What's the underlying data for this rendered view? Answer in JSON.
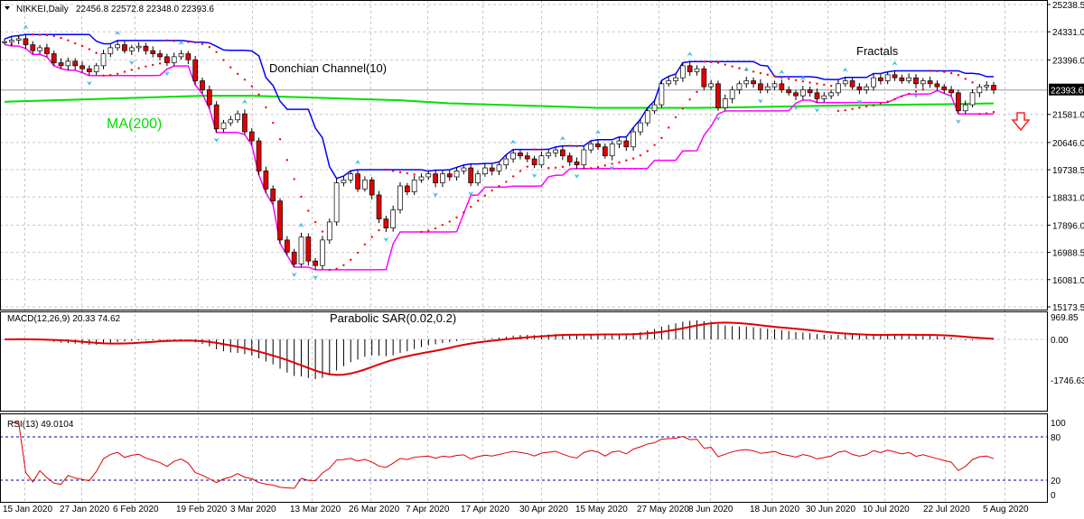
{
  "header": {
    "symbol": "NIKKEI,Daily",
    "ohlc": "22456.8 22572.8 22348.0 22393.6"
  },
  "annotations": {
    "donchian": "Donchian Channel(10)",
    "ma": "MA(200)",
    "sar": "Parabolic SAR(0.02,0.2)",
    "fractals": "Fractals",
    "signal_icon": "down-arrow-icon"
  },
  "colors": {
    "bull": "#ffffff",
    "bear": "#e00000",
    "ma": "#00e000",
    "donchian_upper": "#0000ff",
    "donchian_lower": "#ff00ff",
    "sar": "#ff0000",
    "fractal": "#40c0e0",
    "macd_signal": "#e00000"
  },
  "chart_data": [
    {
      "type": "candlestick",
      "title": "NIKKEI,Daily",
      "current_price": "22393.6",
      "yticks": [
        "25238.5",
        "24331.0",
        "23396.0",
        "21581.0",
        "20646.0",
        "19738.5",
        "18831.0",
        "17896.0",
        "16988.5",
        "16081.0",
        "15173.5"
      ],
      "ylim": [
        15173.5,
        25238.5
      ],
      "xticks": [
        "15 Jan 2020",
        "27 Jan 2020",
        "6 Feb 2020",
        "19 Feb 2020",
        "3 Mar 2020",
        "13 Mar 2020",
        "26 Mar 2020",
        "7 Apr 2020",
        "17 Apr 2020",
        "30 Apr 2020",
        "15 May 2020",
        "27 May 2020",
        "8 Jun 2020",
        "18 Jun 2020",
        "30 Jun 2020",
        "10 Jul 2020",
        "22 Jul 2020",
        "5 Aug 2020"
      ],
      "closes": [
        24000,
        24050,
        24100,
        23900,
        23700,
        23800,
        23600,
        23300,
        23200,
        23350,
        23200,
        23100,
        23000,
        23200,
        23600,
        23800,
        23900,
        23700,
        23800,
        23850,
        23700,
        23600,
        23500,
        23300,
        23500,
        23600,
        23400,
        22700,
        22400,
        21900,
        21100,
        21300,
        21400,
        21600,
        21000,
        20700,
        19700,
        19100,
        18700,
        17400,
        17000,
        16600,
        17500,
        16700,
        16550,
        17400,
        18000,
        19300,
        19400,
        19600,
        19100,
        19400,
        18900,
        18100,
        17800,
        18400,
        19200,
        19000,
        19400,
        19500,
        19600,
        19300,
        19600,
        19500,
        19700,
        19800,
        19300,
        19600,
        19800,
        19700,
        19900,
        20100,
        20300,
        20200,
        20100,
        19900,
        20200,
        20300,
        20400,
        20200,
        20000,
        19900,
        20400,
        20600,
        20500,
        20200,
        20600,
        20700,
        20500,
        21000,
        21300,
        21700,
        21900,
        22600,
        22700,
        22800,
        23200,
        23000,
        23100,
        22500,
        22600,
        21800,
        22100,
        22400,
        22600,
        22700,
        22600,
        22400,
        22500,
        22600,
        22400,
        22300,
        22200,
        22400,
        22300,
        22100,
        22200,
        22300,
        22600,
        22700,
        22500,
        22400,
        22500,
        22800,
        22700,
        22900,
        22800,
        22700,
        22800,
        22600,
        22700,
        22600,
        22500,
        22400,
        22300,
        21700,
        21900,
        22300,
        22500,
        22550,
        22393.6
      ],
      "ma200": [
        22000,
        22050,
        22100,
        22150,
        22200,
        22200,
        22150,
        22100,
        22050,
        21950,
        21900,
        21850,
        21800,
        21800,
        21800,
        21820,
        21850,
        21880,
        21900,
        21920,
        21950
      ],
      "indicators": [
        "Donchian Channel(10)",
        "MA(200)",
        "Parabolic SAR(0.02,0.2)",
        "Fractals"
      ]
    },
    {
      "type": "macd",
      "title": "MACD(12,26,9) 20.33 74.62",
      "yticks": [
        "969.85",
        "0.00",
        "-1746.63"
      ],
      "ylim": [
        -1746.63,
        969.85
      ]
    },
    {
      "type": "rsi",
      "title": "RSI(13) 49.0104",
      "yticks": [
        "100",
        "80",
        "20",
        "0"
      ],
      "ylim": [
        0,
        100
      ]
    }
  ]
}
